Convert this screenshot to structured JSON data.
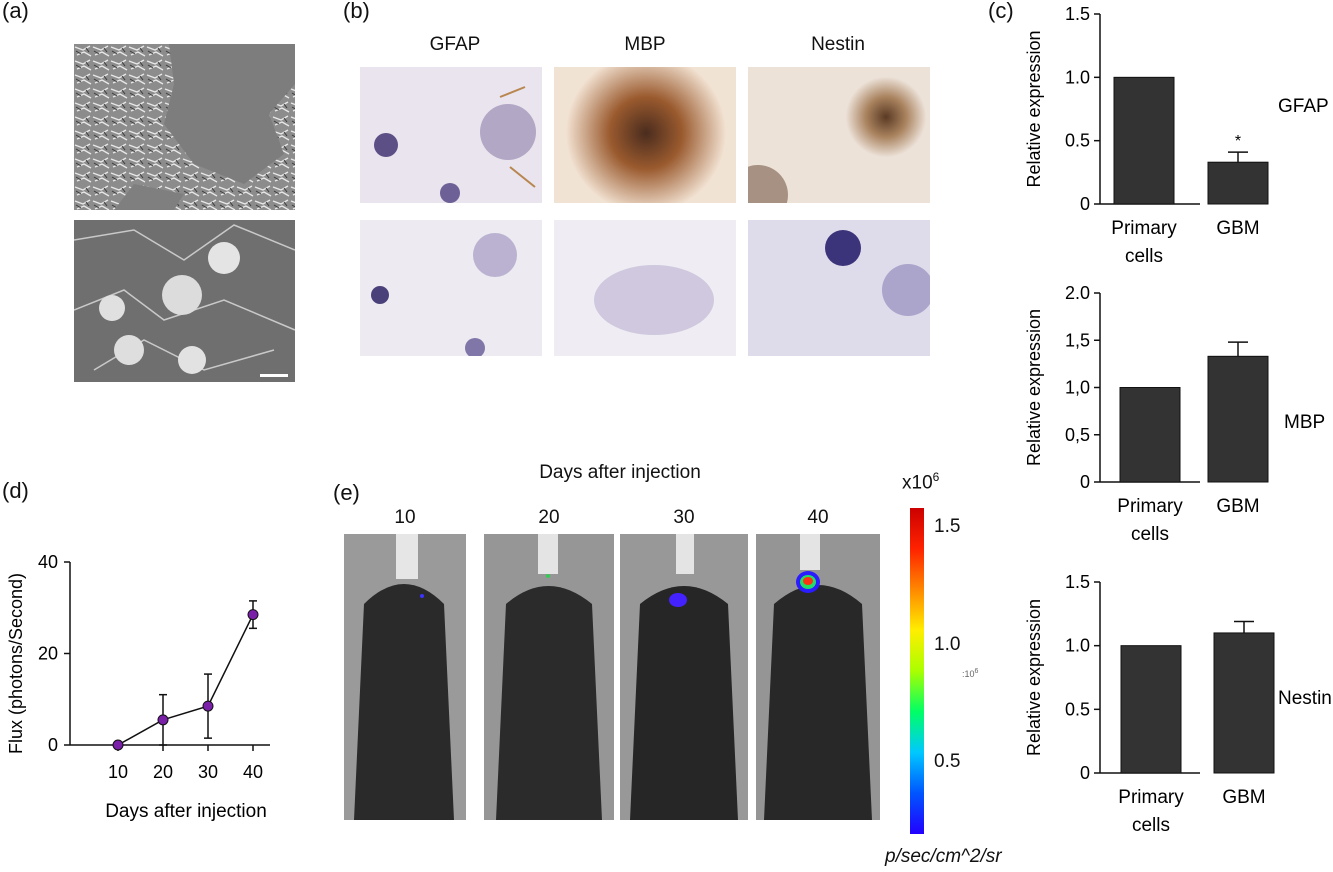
{
  "panels": {
    "a": {
      "label": "(a)"
    },
    "b": {
      "label": "(b)",
      "columns": [
        "GFAP",
        "MBP",
        "Nestin"
      ]
    },
    "c": {
      "label": "(c)"
    },
    "d": {
      "label": "(d)"
    },
    "e": {
      "label": "(e)",
      "title": "Days after injection",
      "days": [
        "10",
        "20",
        "30",
        "40"
      ],
      "colorbar": {
        "multiplier": "x10",
        "multiplier_exp": "6",
        "ticks": [
          "1.5",
          "1.0",
          "0.5"
        ],
        "side_note": ":10",
        "side_note_exp": "6",
        "units": "p/sec/cm^2/sr",
        "colors": [
          "#2200ff",
          "#0055ff",
          "#00c8ff",
          "#00ff66",
          "#aaff00",
          "#ffee00",
          "#ff8800",
          "#ff2200",
          "#cc0000"
        ]
      }
    }
  },
  "chart_data": [
    {
      "type": "bar",
      "id": "c1",
      "side_label": "GFAP",
      "ylabel": "Relative expression",
      "ylim": [
        0,
        1.5
      ],
      "yticks": [
        "0",
        "0.5",
        "1.0",
        "1.5"
      ],
      "categories": [
        "Primary cells",
        "GBM"
      ],
      "values": [
        1.0,
        0.33
      ],
      "errors": [
        0,
        0.08
      ],
      "annotations": [
        "",
        "*"
      ]
    },
    {
      "type": "bar",
      "id": "c2",
      "side_label": "MBP",
      "ylabel": "Relative expression",
      "ylim": [
        0,
        2.0
      ],
      "yticks": [
        "0",
        "0,5",
        "1,0",
        "1,5",
        "2.0"
      ],
      "categories": [
        "Primary cells",
        "GBM"
      ],
      "values": [
        1.0,
        1.33
      ],
      "errors": [
        0,
        0.15
      ],
      "annotations": [
        "",
        ""
      ]
    },
    {
      "type": "bar",
      "id": "c3",
      "side_label": "Nestin",
      "ylabel": "Relative expression",
      "ylim": [
        0,
        1.5
      ],
      "yticks": [
        "0",
        "0.5",
        "1.0",
        "1.5"
      ],
      "categories": [
        "Primary cells",
        "GBM"
      ],
      "values": [
        1.0,
        1.1
      ],
      "errors": [
        0,
        0.09
      ],
      "annotations": [
        "",
        ""
      ]
    },
    {
      "type": "line",
      "id": "d",
      "xlabel": "Days after injection",
      "ylabel": "Flux (photons/Second)",
      "x": [
        10,
        20,
        30,
        40
      ],
      "y": [
        0,
        5.5,
        8.5,
        28.5
      ],
      "errors": [
        0,
        5.5,
        7,
        3
      ],
      "xticks": [
        "10",
        "20",
        "30",
        "40"
      ],
      "yticks": [
        "0",
        "20",
        "40"
      ],
      "ylim": [
        0,
        40
      ],
      "marker_color": "#7a1fa8"
    }
  ]
}
